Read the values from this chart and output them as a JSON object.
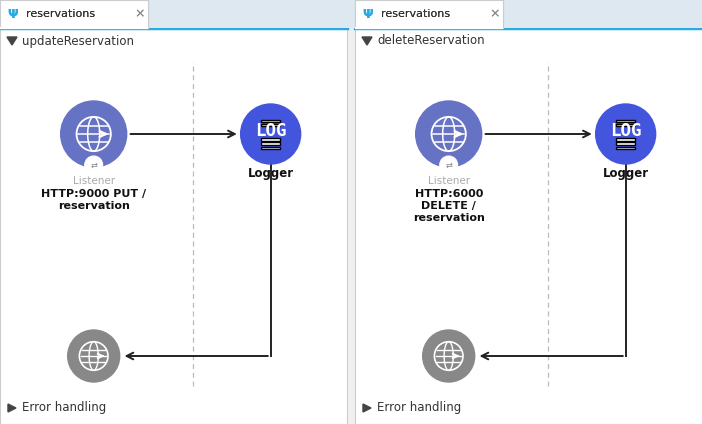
{
  "bg_color": "#f0f0f0",
  "tab_bg": "#dde8f0",
  "tab_active_bg": "#ffffff",
  "tab_border": "#29abe2",
  "panel_border": "#cccccc",
  "panel_bg": "#ffffff",
  "header_text_color": "#333333",
  "listener_color_active": "#6672c4",
  "listener_color_inactive": "#888888",
  "logger_color": "#4455dd",
  "error_text_color": "#333333",
  "tab_text": "reservations",
  "panels": [
    {
      "title": "updateReservation",
      "listener_label": "Listener",
      "listener_detail_lines": [
        "HTTP:9000 PUT /",
        "reservation"
      ],
      "logger_label": "Logger",
      "error_label": "Error handling"
    },
    {
      "title": "deleteReservation",
      "listener_label": "Listener",
      "listener_detail_lines": [
        "HTTP:6000",
        "DELETE /",
        "reservation"
      ],
      "logger_label": "Logger",
      "error_label": "Error handling"
    }
  ],
  "fig_w": 7.02,
  "fig_h": 4.24,
  "dpi": 100
}
